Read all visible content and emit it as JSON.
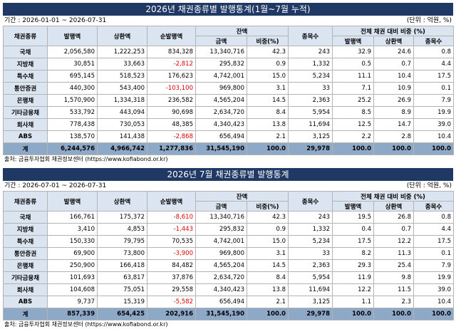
{
  "common": {
    "unit": "(단위 : 억원, %)",
    "headers": {
      "type": "채권종류",
      "issue": "발행액",
      "redeem": "상환액",
      "net": "순발행액",
      "balance": "잔액",
      "amount": "금액",
      "share": "비중(%)",
      "count": "종목수",
      "ratio_group": "전체 채권 대비 비중 (%)",
      "r_issue": "발행액",
      "r_redeem": "상환액",
      "r_count": "종목수"
    },
    "source": "출처: 금융투자협회 채권정보센터 (https://www.kofiabond.or.kr)"
  },
  "tables": [
    {
      "title": "2026년 채권종류별 발행통계(1월~7월 누적)",
      "period": "기간 : 2026-01-01 ~ 2026-07-31",
      "rows": [
        {
          "name": "국채",
          "issue": "2,056,580",
          "redeem": "1,222,253",
          "net": "834,328",
          "neg": false,
          "amount": "13,340,716",
          "share": "42.3",
          "count": "243",
          "r_issue": "32.9",
          "r_redeem": "24.6",
          "r_count": "0.8"
        },
        {
          "name": "지방채",
          "issue": "30,851",
          "redeem": "33,663",
          "net": "-2,812",
          "neg": true,
          "amount": "295,832",
          "share": "0.9",
          "count": "1,332",
          "r_issue": "0.5",
          "r_redeem": "0.7",
          "r_count": "4.4"
        },
        {
          "name": "특수채",
          "issue": "695,145",
          "redeem": "518,523",
          "net": "176,623",
          "neg": false,
          "amount": "4,742,001",
          "share": "15.0",
          "count": "5,234",
          "r_issue": "11.1",
          "r_redeem": "10.4",
          "r_count": "17.5"
        },
        {
          "name": "통안증권",
          "issue": "440,300",
          "redeem": "543,400",
          "net": "-103,100",
          "neg": true,
          "amount": "969,800",
          "share": "3.1",
          "count": "33",
          "r_issue": "7.1",
          "r_redeem": "10.9",
          "r_count": "0.1"
        },
        {
          "name": "은행채",
          "issue": "1,570,900",
          "redeem": "1,334,318",
          "net": "236,582",
          "neg": false,
          "amount": "4,565,204",
          "share": "14.5",
          "count": "2,363",
          "r_issue": "25.2",
          "r_redeem": "26.9",
          "r_count": "7.9"
        },
        {
          "name": "기타금융채",
          "issue": "533,792",
          "redeem": "443,094",
          "net": "90,698",
          "neg": false,
          "amount": "2,634,720",
          "share": "8.4",
          "count": "5,954",
          "r_issue": "8.5",
          "r_redeem": "8.9",
          "r_count": "19.9"
        },
        {
          "name": "회사채",
          "issue": "778,438",
          "redeem": "730,053",
          "net": "48,385",
          "neg": false,
          "amount": "4,340,423",
          "share": "13.8",
          "count": "11,694",
          "r_issue": "12.5",
          "r_redeem": "14.7",
          "r_count": "39.0"
        },
        {
          "name": "ABS",
          "issue": "138,570",
          "redeem": "141,438",
          "net": "-2,868",
          "neg": true,
          "amount": "656,494",
          "share": "2.1",
          "count": "3,125",
          "r_issue": "2.2",
          "r_redeem": "2.8",
          "r_count": "10.4"
        }
      ],
      "total": {
        "name": "계",
        "issue": "6,244,576",
        "redeem": "4,966,742",
        "net": "1,277,836",
        "amount": "31,545,190",
        "share": "100.0",
        "count": "29,978",
        "r_issue": "100.0",
        "r_redeem": "100.0",
        "r_count": "100.0"
      }
    },
    {
      "title": "2026년 7월 채권종류별 발행통계",
      "period": "기간 : 2026-07-01 ~ 2026-07-31",
      "rows": [
        {
          "name": "국채",
          "issue": "166,761",
          "redeem": "175,372",
          "net": "-8,610",
          "neg": true,
          "amount": "13,340,716",
          "share": "42.3",
          "count": "243",
          "r_issue": "19.5",
          "r_redeem": "26.8",
          "r_count": "0.8"
        },
        {
          "name": "지방채",
          "issue": "3,410",
          "redeem": "4,853",
          "net": "-1,443",
          "neg": true,
          "amount": "295,832",
          "share": "0.9",
          "count": "1,332",
          "r_issue": "0.4",
          "r_redeem": "0.7",
          "r_count": "4.4"
        },
        {
          "name": "특수채",
          "issue": "150,330",
          "redeem": "79,795",
          "net": "70,535",
          "neg": false,
          "amount": "4,742,001",
          "share": "15.0",
          "count": "5,234",
          "r_issue": "17.5",
          "r_redeem": "12.2",
          "r_count": "17.5"
        },
        {
          "name": "통안증권",
          "issue": "69,900",
          "redeem": "73,800",
          "net": "-3,900",
          "neg": true,
          "amount": "969,800",
          "share": "3.1",
          "count": "33",
          "r_issue": "8.2",
          "r_redeem": "11.3",
          "r_count": "0.1"
        },
        {
          "name": "은행채",
          "issue": "250,900",
          "redeem": "166,418",
          "net": "84,482",
          "neg": false,
          "amount": "4,565,204",
          "share": "14.5",
          "count": "2,363",
          "r_issue": "29.3",
          "r_redeem": "25.4",
          "r_count": "7.9"
        },
        {
          "name": "기타금융채",
          "issue": "101,693",
          "redeem": "63,817",
          "net": "37,876",
          "neg": false,
          "amount": "2,634,720",
          "share": "8.4",
          "count": "5,954",
          "r_issue": "11.9",
          "r_redeem": "9.8",
          "r_count": "19.9"
        },
        {
          "name": "회사채",
          "issue": "104,608",
          "redeem": "75,051",
          "net": "29,558",
          "neg": false,
          "amount": "4,340,423",
          "share": "13.8",
          "count": "11,694",
          "r_issue": "12.2",
          "r_redeem": "11.5",
          "r_count": "39.0"
        },
        {
          "name": "ABS",
          "issue": "9,737",
          "redeem": "15,319",
          "net": "-5,582",
          "neg": true,
          "amount": "656,494",
          "share": "2.1",
          "count": "3,125",
          "r_issue": "1.1",
          "r_redeem": "2.3",
          "r_count": "10.4"
        }
      ],
      "total": {
        "name": "계",
        "issue": "857,339",
        "redeem": "654,425",
        "net": "202,916",
        "amount": "31,545,190",
        "share": "100.0",
        "count": "29,978",
        "r_issue": "100.0",
        "r_redeem": "100.0",
        "r_count": "100.0"
      }
    }
  ]
}
